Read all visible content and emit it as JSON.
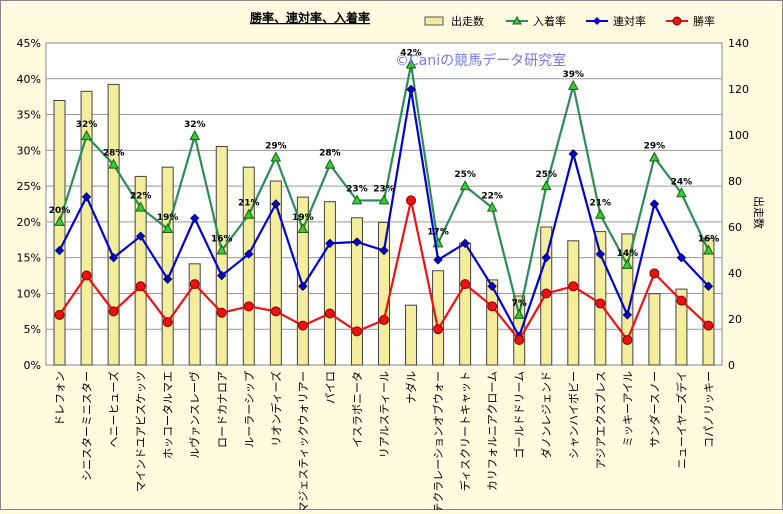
{
  "chart_data": {
    "type": "bar+line",
    "title": "勝率、連対率、入着率",
    "watermark": "©Caniの競馬データ研究室",
    "categories": [
      "ドレフォン",
      "シニスターミニスター",
      "ヘニーヒューズ",
      "マインドユアビスケッツ",
      "ホッコータルマエ",
      "ルヴァンスレーヴ",
      "ロードカナロア",
      "ルーラーシップ",
      "リオンディーズ",
      "マジェスティックウォリアー",
      "パイロ",
      "イスラボニータ",
      "リアルスティール",
      "ナダル",
      "テクラレーションオブウォー",
      "ディスクリートキャット",
      "カリフォルニアクローム",
      "ゴールドドリーム",
      "ダノンレジェンド",
      "シャンハイボビー",
      "アジアエクスプレス",
      "ミッキーアイル",
      "サンダースノー",
      "ニューイヤーズデイ",
      "コパノリッキー"
    ],
    "y_left": {
      "min": 0,
      "max": 45,
      "step": 5,
      "unit": "%",
      "ticks": [
        "0%",
        "5%",
        "10%",
        "15%",
        "20%",
        "25%",
        "30%",
        "35%",
        "40%",
        "45%"
      ]
    },
    "y_right": {
      "label": "出走数",
      "min": 0,
      "max": 140,
      "step": 20,
      "ticks": [
        "0",
        "20",
        "40",
        "60",
        "80",
        "100",
        "120",
        "140"
      ]
    },
    "legend": [
      {
        "key": "starts",
        "label": "出走数",
        "color": "#f0eaa0",
        "kind": "bar"
      },
      {
        "key": "place",
        "label": "入着率",
        "color": "#2e8b57",
        "kind": "line"
      },
      {
        "key": "quinella",
        "label": "連対率",
        "color": "#0000cc",
        "kind": "line"
      },
      {
        "key": "win",
        "label": "勝率",
        "color": "#ee1111",
        "kind": "line"
      }
    ],
    "series": {
      "starts": [
        115,
        119,
        122,
        82,
        86,
        44,
        95,
        86,
        80,
        73,
        71,
        64,
        62,
        26,
        41,
        53,
        37,
        30,
        60,
        54,
        58,
        57,
        31,
        33,
        55
      ],
      "place": [
        20,
        32,
        28,
        22,
        19,
        32,
        16,
        21,
        29,
        19,
        28,
        23,
        23,
        42,
        17,
        25,
        22,
        7,
        25,
        39,
        21,
        14,
        29,
        24,
        16
      ],
      "quinella": [
        16,
        23.5,
        15,
        18,
        12,
        20.5,
        12.5,
        15.5,
        22.5,
        11,
        17,
        17.2,
        16,
        38.5,
        14.7,
        17,
        11,
        4,
        15,
        29.5,
        15.5,
        7,
        22.5,
        15,
        11
      ],
      "win": [
        7,
        12.5,
        7.5,
        11,
        6,
        11.3,
        7.3,
        8.2,
        7.5,
        5.5,
        7.2,
        4.7,
        6.3,
        23,
        5,
        11.3,
        8.2,
        3.5,
        10,
        11,
        8.6,
        3.5,
        12.8,
        9,
        5.5
      ]
    },
    "place_labels": [
      "20%",
      "32%",
      "28%",
      "22%",
      "19%",
      "32%",
      "16%",
      "21%",
      "29%",
      "19%",
      "28%",
      "23%",
      "23%",
      "42%",
      "17%",
      "25%",
      "22%",
      "7%",
      "25%",
      "39%",
      "21%",
      "14%",
      "29%",
      "24%",
      "16%"
    ]
  }
}
